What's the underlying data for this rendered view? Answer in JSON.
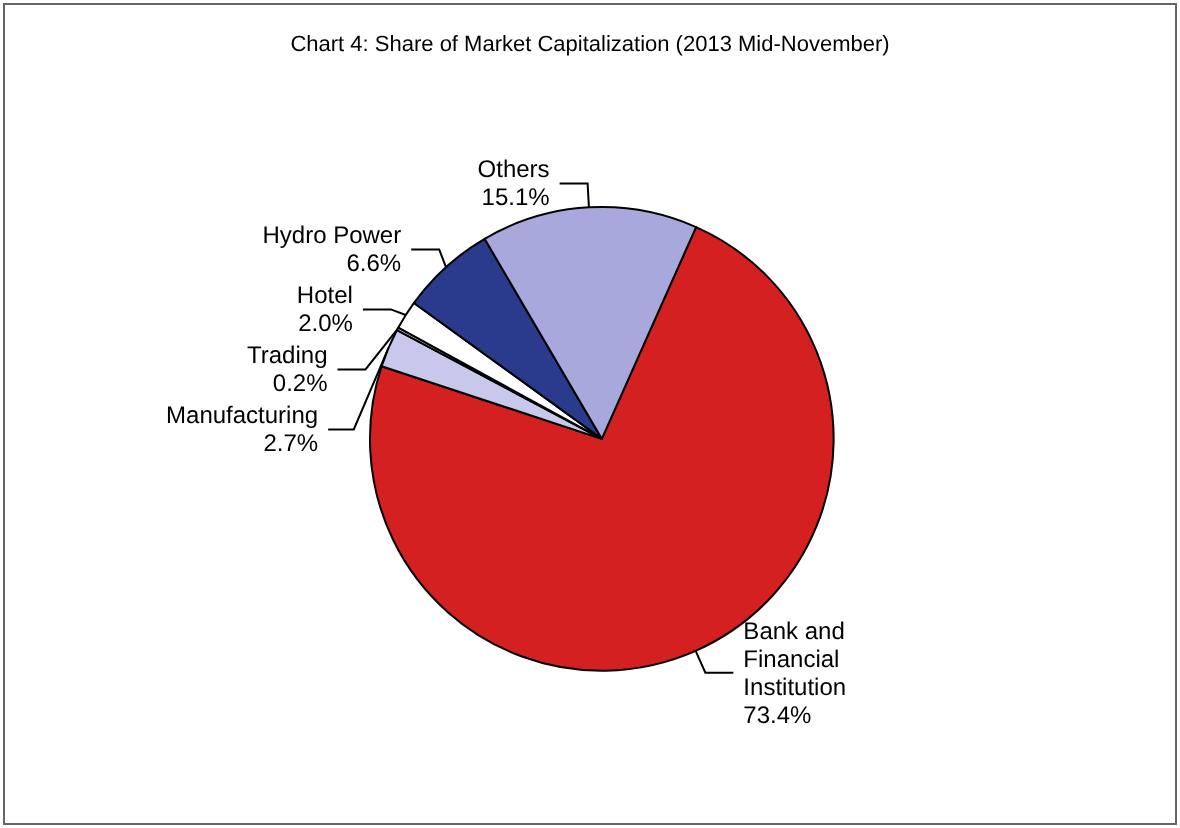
{
  "chart_data": {
    "type": "pie",
    "title": "Chart 4: Share of Market Capitalization (2013 Mid-November)",
    "categories": [
      "Bank and Financial Institution",
      "Manufacturing",
      "Trading",
      "Hotel",
      "Hydro Power",
      "Others"
    ],
    "values": [
      73.4,
      2.7,
      0.2,
      2.0,
      6.6,
      15.1
    ],
    "colors": [
      "#d42020",
      "#c8c8ec",
      "#e0e0f4",
      "#ffffff",
      "#2a3a8c",
      "#a8a8dc"
    ],
    "value_labels": [
      "73.4%",
      "2.7%",
      "0.2%",
      "2.0%",
      "6.6%",
      "15.1%"
    ],
    "legend": false
  }
}
